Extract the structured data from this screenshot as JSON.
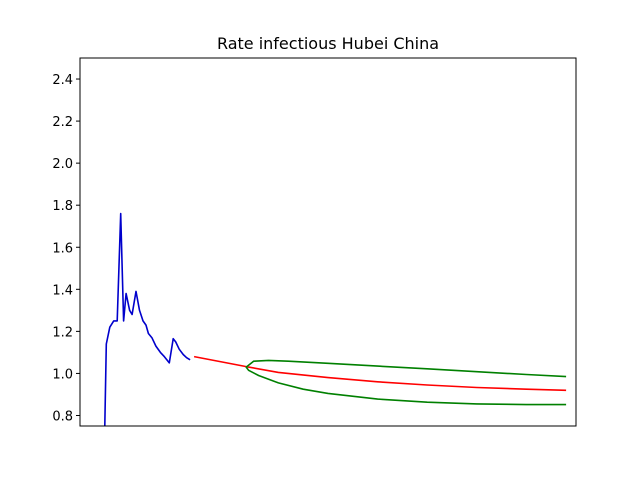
{
  "chart_data": {
    "type": "line",
    "title": "Rate infectious Hubei China",
    "xlabel": "",
    "ylabel": "",
    "ylim": [
      0.75,
      2.5
    ],
    "x_range": [
      0,
      100
    ],
    "yticks": [
      "0.8",
      "1.0",
      "1.2",
      "1.4",
      "1.6",
      "1.8",
      "2.0",
      "2.2",
      "2.4"
    ],
    "grid": false,
    "series": [
      {
        "color": "#0000cc",
        "x": [
          5.0,
          5.3,
          6.0,
          6.8,
          7.5,
          8.2,
          8.8,
          9.3,
          10.0,
          10.5,
          11.3,
          12.0,
          12.7,
          13.3,
          13.8,
          14.5,
          15.3,
          16.2,
          17.0,
          18.0,
          18.8,
          19.3,
          20.0,
          20.8,
          21.5,
          22.2
        ],
        "y": [
          0.75,
          1.14,
          1.22,
          1.25,
          1.25,
          1.76,
          1.25,
          1.38,
          1.3,
          1.28,
          1.39,
          1.3,
          1.25,
          1.23,
          1.19,
          1.17,
          1.13,
          1.1,
          1.08,
          1.05,
          1.165,
          1.15,
          1.115,
          1.09,
          1.075,
          1.065
        ]
      },
      {
        "color": "#ff0000",
        "x": [
          23.0,
          33.0,
          34.0,
          40.0,
          50.0,
          60.0,
          70.0,
          80.0,
          90.0,
          98.0
        ],
        "y": [
          1.08,
          1.035,
          1.03,
          1.005,
          0.98,
          0.96,
          0.945,
          0.933,
          0.925,
          0.92
        ]
      },
      {
        "color": "#008000",
        "x": [
          98.0,
          90.0,
          80.0,
          70.0,
          60.0,
          50.0,
          42.0,
          38.0,
          35.0,
          33.5,
          34.0,
          36.0,
          40.0,
          45.0,
          50.0,
          60.0,
          70.0,
          80.0,
          90.0,
          98.0
        ],
        "y": [
          0.985,
          0.995,
          1.008,
          1.022,
          1.035,
          1.048,
          1.058,
          1.062,
          1.058,
          1.03,
          1.015,
          0.99,
          0.955,
          0.925,
          0.905,
          0.878,
          0.863,
          0.855,
          0.852,
          0.852
        ]
      }
    ]
  }
}
